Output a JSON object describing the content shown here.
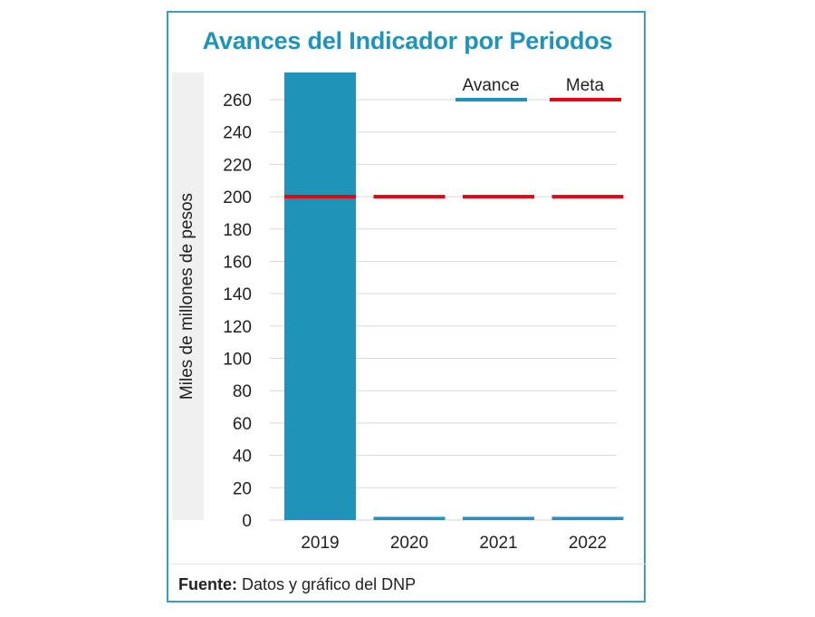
{
  "chart_data": {
    "type": "bar",
    "title": "Avances del Indicador por Periodos",
    "xlabel": "",
    "ylabel": "Miles de millones de pesos",
    "categories": [
      "2019",
      "2020",
      "2021",
      "2022"
    ],
    "series": [
      {
        "name": "Avance",
        "kind": "bar",
        "color": "#1f93b8",
        "values": [
          277,
          2,
          2,
          2
        ]
      },
      {
        "name": "Meta",
        "kind": "target-line",
        "color": "#e30613",
        "values": [
          200,
          200,
          200,
          200
        ]
      }
    ],
    "ylim": [
      0,
      260
    ],
    "yticks": [
      0,
      20,
      40,
      60,
      80,
      100,
      120,
      140,
      160,
      180,
      200,
      220,
      240,
      260
    ],
    "grid": true,
    "legend": "top-right"
  },
  "legend": [
    {
      "label": "Avance",
      "color": "#1f93b8"
    },
    {
      "label": "Meta",
      "color": "#e30613"
    }
  ],
  "footer": {
    "label": "Fuente:",
    "text": " Datos y gráfico del DNP"
  }
}
